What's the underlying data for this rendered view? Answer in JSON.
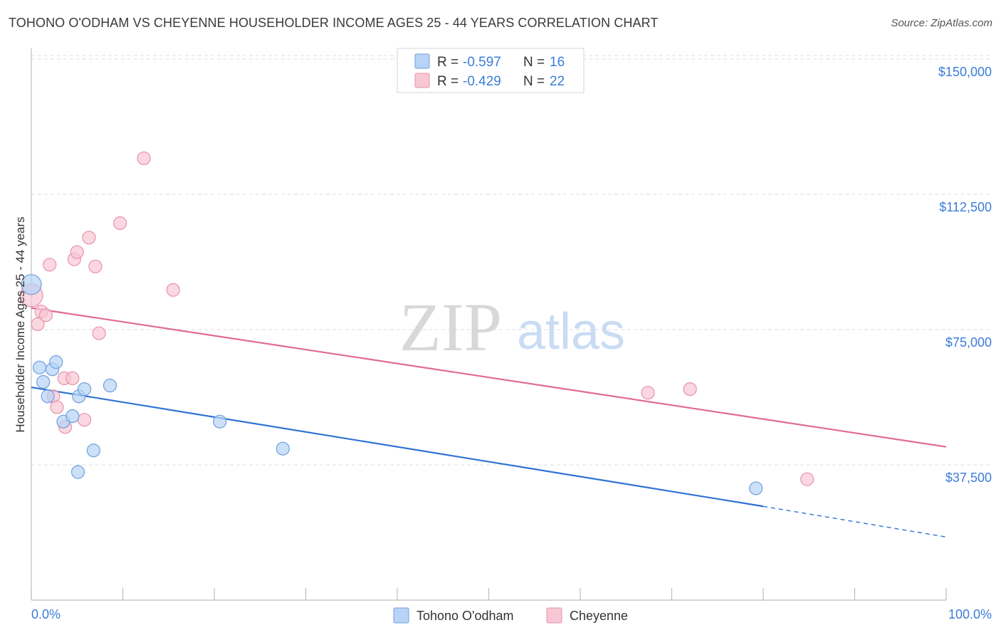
{
  "header": {
    "title": "TOHONO O'ODHAM VS CHEYENNE HOUSEHOLDER INCOME AGES 25 - 44 YEARS CORRELATION CHART",
    "source": "Source: ZipAtlas.com"
  },
  "watermark": {
    "zip": "ZIP",
    "atlas": "atlas"
  },
  "legend_top": [
    {
      "r_label": "R =",
      "r_value": "-0.597",
      "n_label": "N =",
      "n_value": "16"
    },
    {
      "r_label": "R =",
      "r_value": "-0.429",
      "n_label": "N =",
      "n_value": "22"
    }
  ],
  "colors": {
    "blue_fill": "#b7d3f5",
    "blue_stroke": "#6f9fdc",
    "blue_line": "#2f73d6",
    "pink_fill": "#f8c6d4",
    "pink_stroke": "#e892ac",
    "pink_line": "#e06b94",
    "accent_text": "#3b7dd8",
    "grid": "#dedede"
  },
  "chart_data": {
    "type": "scatter",
    "title": "TOHONO O'ODHAM VS CHEYENNE HOUSEHOLDER INCOME AGES 25 - 44 YEARS CORRELATION CHART",
    "xlabel": "",
    "ylabel": "Householder Income Ages 25 - 44 years",
    "xlim": [
      0,
      100
    ],
    "ylim": [
      0,
      157000
    ],
    "x_tick_labels": [
      "0.0%",
      "100.0%"
    ],
    "y_ticks": [
      37500,
      75000,
      112500,
      150000
    ],
    "y_tick_labels": [
      "$37,500",
      "$75,000",
      "$112,500",
      "$150,000"
    ],
    "series": [
      {
        "name": "Tohono O'odham",
        "r": -0.597,
        "n": 16,
        "points": [
          [
            0.0,
            87500,
            14
          ],
          [
            0.9,
            64500,
            9
          ],
          [
            1.3,
            60500,
            9
          ],
          [
            1.8,
            56500,
            9
          ],
          [
            2.3,
            64000,
            9
          ],
          [
            2.7,
            66000,
            9
          ],
          [
            3.5,
            49500,
            9
          ],
          [
            4.5,
            51000,
            9
          ],
          [
            5.2,
            56500,
            9
          ],
          [
            5.8,
            58500,
            9
          ],
          [
            6.8,
            41500,
            9
          ],
          [
            5.1,
            35500,
            9
          ],
          [
            8.6,
            59500,
            9
          ],
          [
            20.6,
            49500,
            9
          ],
          [
            27.5,
            42000,
            9
          ],
          [
            79.2,
            31000,
            9
          ]
        ],
        "trend": {
          "x0": 0.0,
          "y0": 59000,
          "x1": 80.0,
          "y1": 26000,
          "dash_to_x": 100.0,
          "dash_to_y": 17500
        }
      },
      {
        "name": "Cheyenne",
        "r": -0.429,
        "n": 22,
        "points": [
          [
            0.0,
            84500,
            16
          ],
          [
            0.7,
            76500,
            9
          ],
          [
            1.1,
            80000,
            9
          ],
          [
            1.6,
            79000,
            9
          ],
          [
            2.0,
            93000,
            9
          ],
          [
            2.4,
            56500,
            9
          ],
          [
            2.8,
            53500,
            9
          ],
          [
            3.6,
            61500,
            9
          ],
          [
            3.7,
            48000,
            9
          ],
          [
            4.5,
            61500,
            9
          ],
          [
            4.7,
            94500,
            9
          ],
          [
            5.0,
            96500,
            9
          ],
          [
            5.8,
            50000,
            9
          ],
          [
            6.3,
            100500,
            9
          ],
          [
            7.0,
            92500,
            9
          ],
          [
            7.4,
            74000,
            9
          ],
          [
            9.7,
            104500,
            9
          ],
          [
            12.3,
            122500,
            9
          ],
          [
            15.5,
            86000,
            9
          ],
          [
            67.4,
            57500,
            9
          ],
          [
            72.0,
            58500,
            9
          ],
          [
            84.8,
            33500,
            9
          ]
        ],
        "trend": {
          "x0": 0.0,
          "y0": 81000,
          "x1": 100.0,
          "y1": 42500
        }
      }
    ],
    "legend": [
      "Tohono O'odham",
      "Cheyenne"
    ]
  }
}
